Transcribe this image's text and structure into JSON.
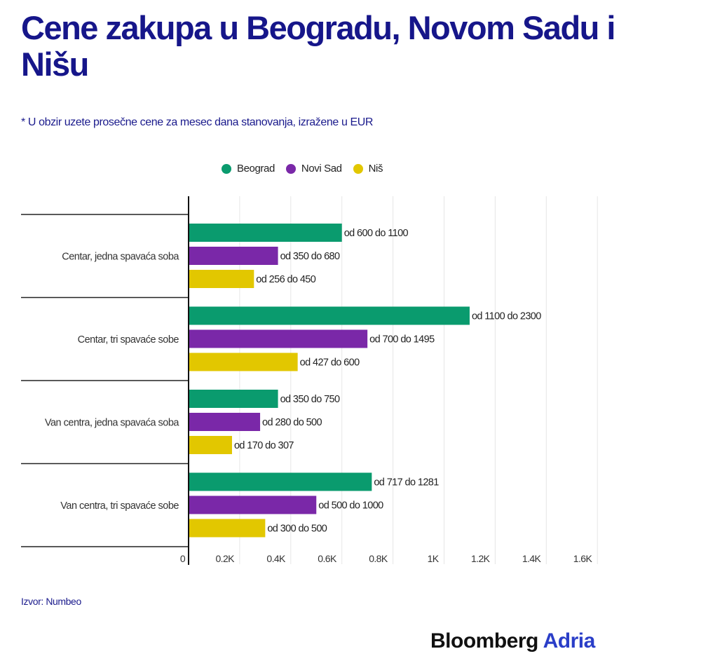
{
  "title": "Cene zakupa u Beogradu, Novom Sadu i Nišu",
  "subtitle": "* U obzir uzete prosečne cene za mesec dana stanovanja, izražene u EUR",
  "source": "Izvor: Numbeo",
  "logo": {
    "brand": "Bloomberg",
    "suffix": "Adria"
  },
  "chart_data": {
    "type": "bar",
    "orientation": "horizontal",
    "categories": [
      "Centar, jedna spavaća soba",
      "Centar, tri spavaće sobe",
      "Van centra, jedna spavaća soba",
      "Van centra, tri spavaće sobe"
    ],
    "series": [
      {
        "name": "Beograd",
        "color": "#0a9b6e",
        "values": [
          600,
          1100,
          350,
          717
        ],
        "labels": [
          "od 600 do 1100",
          "od 1100 do 2300",
          "od 350 do 750",
          "od 717 do 1281"
        ]
      },
      {
        "name": "Novi Sad",
        "color": "#7a28a8",
        "values": [
          350,
          700,
          280,
          500
        ],
        "labels": [
          "od 350 do 680",
          "od 700 do 1495",
          "od 280 do 500",
          "od 500 do 1000"
        ]
      },
      {
        "name": "Niš",
        "color": "#e2c700",
        "values": [
          256,
          427,
          170,
          300
        ],
        "labels": [
          "od 256 do 450",
          "od 427 do 600",
          "od 170 do 307",
          "od 300 do 500"
        ]
      }
    ],
    "xlim": [
      0,
      1600
    ],
    "xticks": [
      0,
      200,
      400,
      600,
      800,
      1000,
      1200,
      1400,
      1600
    ],
    "xtick_labels": [
      "0",
      "0.2K",
      "0.4K",
      "0.6K",
      "0.8K",
      "1K",
      "1.2K",
      "1.4K",
      "1.6K"
    ],
    "grid": true,
    "legend": "top"
  }
}
